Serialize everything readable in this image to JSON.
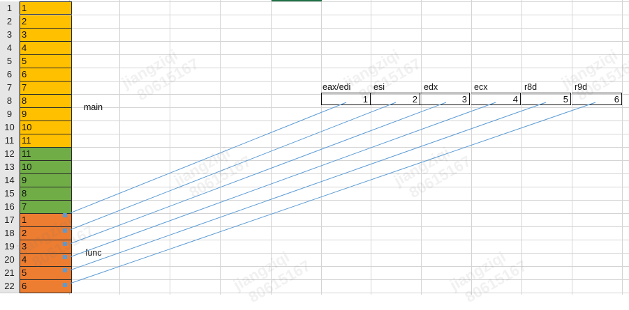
{
  "spreadsheet": {
    "row_numbers": [
      "1",
      "2",
      "3",
      "4",
      "5",
      "6",
      "7",
      "8",
      "9",
      "10",
      "11",
      "12",
      "13",
      "14",
      "15",
      "16",
      "17",
      "18",
      "19",
      "20",
      "21",
      "22"
    ],
    "column_a": [
      {
        "value": "1",
        "fill": "#ffc000"
      },
      {
        "value": "2",
        "fill": "#ffc000"
      },
      {
        "value": "3",
        "fill": "#ffc000"
      },
      {
        "value": "4",
        "fill": "#ffc000"
      },
      {
        "value": "5",
        "fill": "#ffc000"
      },
      {
        "value": "6",
        "fill": "#ffc000"
      },
      {
        "value": "7",
        "fill": "#ffc000"
      },
      {
        "value": "8",
        "fill": "#ffc000"
      },
      {
        "value": "9",
        "fill": "#ffc000"
      },
      {
        "value": "10",
        "fill": "#ffc000"
      },
      {
        "value": "11",
        "fill": "#ffc000"
      },
      {
        "value": "11",
        "fill": "#70ad47"
      },
      {
        "value": "10",
        "fill": "#70ad47"
      },
      {
        "value": "9",
        "fill": "#70ad47"
      },
      {
        "value": "8",
        "fill": "#70ad47"
      },
      {
        "value": "7",
        "fill": "#70ad47"
      },
      {
        "value": "1",
        "fill": "#ed7d31"
      },
      {
        "value": "2",
        "fill": "#ed7d31"
      },
      {
        "value": "3",
        "fill": "#ed7d31"
      },
      {
        "value": "4",
        "fill": "#ed7d31"
      },
      {
        "value": "5",
        "fill": "#ed7d31"
      },
      {
        "value": "6",
        "fill": "#ed7d31"
      }
    ],
    "labels": {
      "main": "main",
      "func": "func"
    },
    "registers": {
      "headers": [
        "eax/edi",
        "esi",
        "edx",
        "ecx",
        "r8d",
        "r9d"
      ],
      "values": [
        "1",
        "2",
        "3",
        "4",
        "5",
        "6"
      ]
    },
    "watermark": {
      "name": "jiangziqi",
      "id": "80615167"
    },
    "colors": {
      "arrow": "#5b9bd5",
      "grid": "#d4d4d4",
      "selection": "#1e7145"
    }
  }
}
